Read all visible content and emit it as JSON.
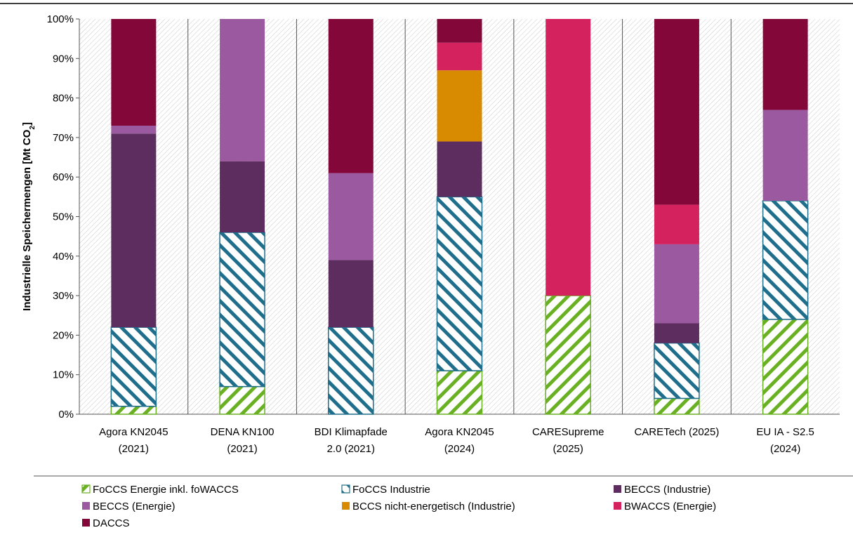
{
  "chart_data": {
    "type": "bar",
    "stacked": true,
    "percent": true,
    "ylabel": "Industrielle Speichermengen [Mt CO",
    "ylabel_sub": "2",
    "ylabel_end": "]",
    "ylim": [
      0,
      100
    ],
    "yticks": [
      "0%",
      "10%",
      "20%",
      "30%",
      "40%",
      "50%",
      "60%",
      "70%",
      "80%",
      "90%",
      "100%"
    ],
    "categories": [
      [
        "Agora KN2045",
        "(2021)"
      ],
      [
        "DENA KN100",
        "(2021)"
      ],
      [
        "BDI Klimapfade",
        "2.0 (2021)"
      ],
      [
        "Agora KN2045",
        "(2024)"
      ],
      [
        "CARESupreme",
        "(2025)"
      ],
      [
        "CARETech (2025)"
      ],
      [
        "EU IA  - S2.5",
        "(2024)"
      ]
    ],
    "series": [
      {
        "name": "FoCCS Energie inkl. foWACCS",
        "color": "#6ab023",
        "pattern": "diag-green",
        "values": [
          2,
          7,
          0,
          11,
          30,
          4,
          24
        ]
      },
      {
        "name": "FoCCS Industrie",
        "color": "#1f6e8c",
        "pattern": "diag-blue",
        "values": [
          20,
          39,
          22,
          44,
          0,
          14,
          30
        ]
      },
      {
        "name": "BECCS (Industrie)",
        "color": "#5c2d5e",
        "values": [
          49,
          18,
          17,
          14,
          0,
          5,
          0
        ]
      },
      {
        "name": "BECCS (Energie)",
        "color": "#9b5a9f",
        "values": [
          2,
          36,
          22,
          0,
          0,
          20,
          23
        ]
      },
      {
        "name": "BCCS nicht-energetisch (Industrie)",
        "color": "#d88a00",
        "values": [
          0,
          0,
          0,
          18,
          0,
          0,
          0
        ]
      },
      {
        "name": "BWACCS (Energie)",
        "color": "#d4225f",
        "values": [
          0,
          0,
          0,
          7,
          70,
          10,
          0
        ]
      },
      {
        "name": "DACCS",
        "color": "#830839",
        "values": [
          27,
          0,
          39,
          6,
          0,
          47,
          23
        ]
      }
    ],
    "legend_position": "bottom",
    "background_pattern": "diagonal hatch",
    "grid": false
  }
}
